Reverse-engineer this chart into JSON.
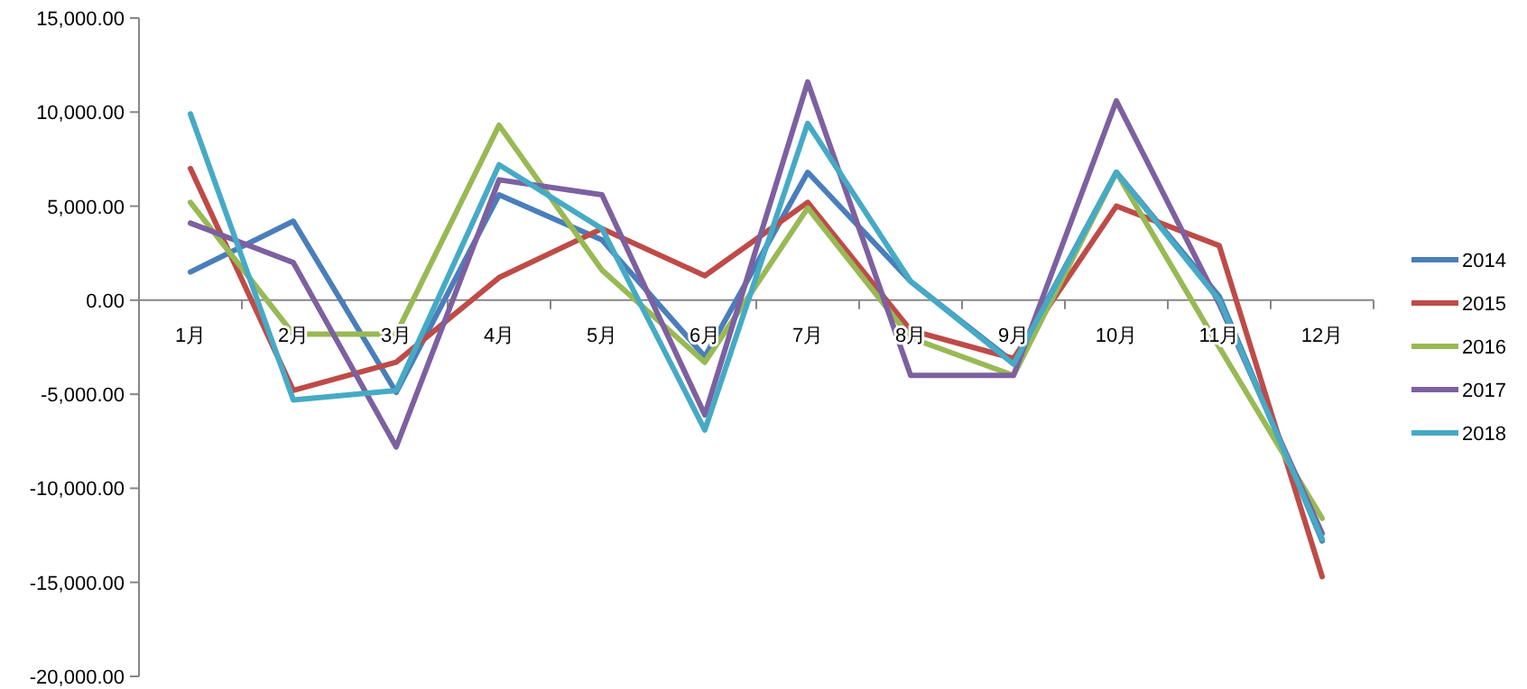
{
  "chart_data": {
    "type": "line",
    "categories": [
      "1月",
      "2月",
      "3月",
      "4月",
      "5月",
      "6月",
      "7月",
      "8月",
      "9月",
      "10月",
      "11月",
      "12月"
    ],
    "ylim": [
      -20000,
      15000
    ],
    "yticks": [
      {
        "value": -20000,
        "label": "-20,000.00"
      },
      {
        "value": -15000,
        "label": "-15,000.00"
      },
      {
        "value": -10000,
        "label": "-10,000.00"
      },
      {
        "value": -5000,
        "label": "-5,000.00"
      },
      {
        "value": 0,
        "label": "0.00"
      },
      {
        "value": 5000,
        "label": "5,000.00"
      },
      {
        "value": 10000,
        "label": "10,000.00"
      },
      {
        "value": 15000,
        "label": "15,000.00"
      }
    ],
    "grid": false,
    "legend": "right",
    "marker": "none",
    "line_style": "solid",
    "series": [
      {
        "name": "2014",
        "color": "#4a7ebb",
        "values": [
          1500,
          4200,
          -4900,
          5600,
          3200,
          -3000,
          6800,
          1000,
          -3300,
          6800,
          200,
          -12800
        ]
      },
      {
        "name": "2015",
        "color": "#be4b48",
        "values": [
          7000,
          -4800,
          -3300,
          1200,
          3800,
          1300,
          5200,
          -1600,
          -3100,
          5000,
          2900,
          -14700
        ]
      },
      {
        "name": "2016",
        "color": "#98b954",
        "values": [
          5200,
          -1800,
          -1800,
          9300,
          1600,
          -3300,
          4900,
          -2000,
          -4000,
          6800,
          -2500,
          -11600
        ]
      },
      {
        "name": "2017",
        "color": "#7d60a0",
        "values": [
          4100,
          2000,
          -7800,
          6400,
          5600,
          -6100,
          11600,
          -4000,
          -4000,
          10600,
          -200,
          -12400
        ]
      },
      {
        "name": "2018",
        "color": "#46aac5",
        "values": [
          9900,
          -5300,
          -4800,
          7200,
          3800,
          -6900,
          9400,
          1000,
          -3400,
          6800,
          0,
          -12700
        ]
      }
    ]
  }
}
